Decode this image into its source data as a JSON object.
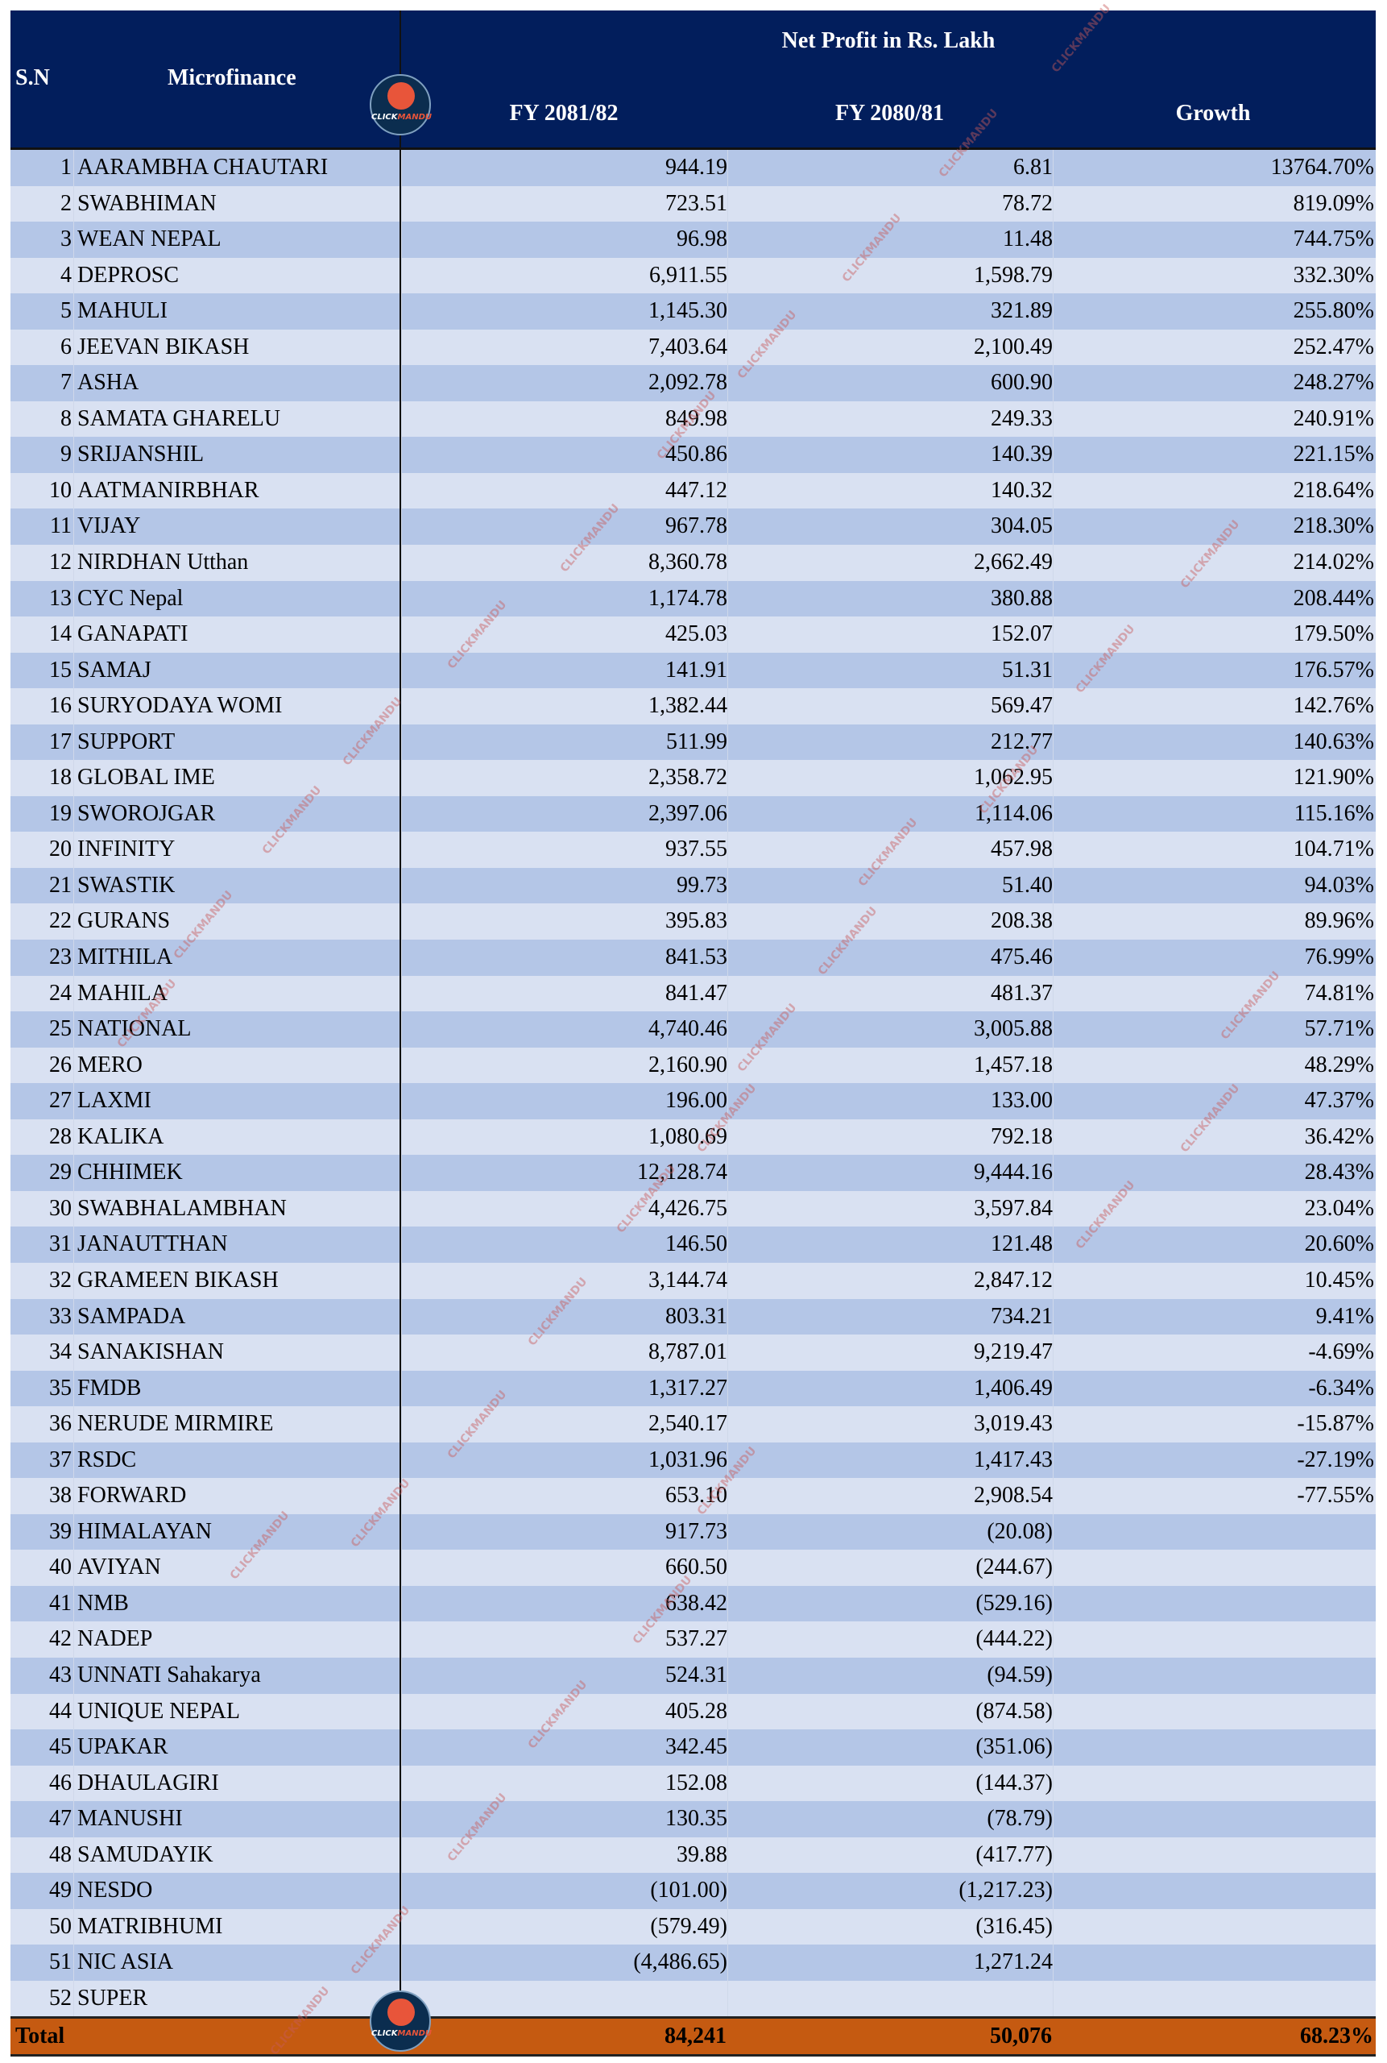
{
  "header": {
    "sn": "S.N",
    "microfinance": "Microfinance",
    "group": "Net Profit in Rs. Lakh",
    "fy_current": "FY 2081/82",
    "fy_previous": "FY 2080/81",
    "growth": "Growth"
  },
  "logo": {
    "text_a": "CLICK",
    "text_b": "MANDU"
  },
  "watermark": "CLICKMANDU",
  "colors": {
    "header_bg": "#021e5c",
    "row_odd": "#b4c6e7",
    "row_even": "#d9e1f2",
    "total_bg": "#c55a11"
  },
  "rows": [
    [
      "1",
      "AARAMBHA CHAUTARI",
      "944.19",
      "6.81",
      "13764.70%"
    ],
    [
      "2",
      "SWABHIMAN",
      "723.51",
      "78.72",
      "819.09%"
    ],
    [
      "3",
      "WEAN NEPAL",
      "96.98",
      "11.48",
      "744.75%"
    ],
    [
      "4",
      "DEPROSC",
      "6,911.55",
      "1,598.79",
      "332.30%"
    ],
    [
      "5",
      "MAHULI",
      "1,145.30",
      "321.89",
      "255.80%"
    ],
    [
      "6",
      "JEEVAN BIKASH",
      "7,403.64",
      "2,100.49",
      "252.47%"
    ],
    [
      "7",
      "ASHA",
      "2,092.78",
      "600.90",
      "248.27%"
    ],
    [
      "8",
      "SAMATA GHARELU",
      "849.98",
      "249.33",
      "240.91%"
    ],
    [
      "9",
      "SRIJANSHIL",
      "450.86",
      "140.39",
      "221.15%"
    ],
    [
      "10",
      "AATMANIRBHAR",
      "447.12",
      "140.32",
      "218.64%"
    ],
    [
      "11",
      "VIJAY",
      "967.78",
      "304.05",
      "218.30%"
    ],
    [
      "12",
      "NIRDHAN Utthan",
      "8,360.78",
      "2,662.49",
      "214.02%"
    ],
    [
      "13",
      "CYC Nepal",
      "1,174.78",
      "380.88",
      "208.44%"
    ],
    [
      "14",
      "GANAPATI",
      "425.03",
      "152.07",
      "179.50%"
    ],
    [
      "15",
      "SAMAJ",
      "141.91",
      "51.31",
      "176.57%"
    ],
    [
      "16",
      "SURYODAYA WOMI",
      "1,382.44",
      "569.47",
      "142.76%"
    ],
    [
      "17",
      "SUPPORT",
      "511.99",
      "212.77",
      "140.63%"
    ],
    [
      "18",
      "GLOBAL IME",
      "2,358.72",
      "1,062.95",
      "121.90%"
    ],
    [
      "19",
      "SWOROJGAR",
      "2,397.06",
      "1,114.06",
      "115.16%"
    ],
    [
      "20",
      "INFINITY",
      "937.55",
      "457.98",
      "104.71%"
    ],
    [
      "21",
      "SWASTIK",
      "99.73",
      "51.40",
      "94.03%"
    ],
    [
      "22",
      "GURANS",
      "395.83",
      "208.38",
      "89.96%"
    ],
    [
      "23",
      "MITHILA",
      "841.53",
      "475.46",
      "76.99%"
    ],
    [
      "24",
      "MAHILA",
      "841.47",
      "481.37",
      "74.81%"
    ],
    [
      "25",
      "NATIONAL",
      "4,740.46",
      "3,005.88",
      "57.71%"
    ],
    [
      "26",
      "MERO",
      "2,160.90",
      "1,457.18",
      "48.29%"
    ],
    [
      "27",
      "LAXMI",
      "196.00",
      "133.00",
      "47.37%"
    ],
    [
      "28",
      "KALIKA",
      "1,080.69",
      "792.18",
      "36.42%"
    ],
    [
      "29",
      "CHHIMEK",
      "12,128.74",
      "9,444.16",
      "28.43%"
    ],
    [
      "30",
      "SWABHALAMBHAN",
      "4,426.75",
      "3,597.84",
      "23.04%"
    ],
    [
      "31",
      "JANAUTTHAN",
      "146.50",
      "121.48",
      "20.60%"
    ],
    [
      "32",
      "GRAMEEN BIKASH",
      "3,144.74",
      "2,847.12",
      "10.45%"
    ],
    [
      "33",
      "SAMPADA",
      "803.31",
      "734.21",
      "9.41%"
    ],
    [
      "34",
      "SANAKISHAN",
      "8,787.01",
      "9,219.47",
      "-4.69%"
    ],
    [
      "35",
      "FMDB",
      "1,317.27",
      "1,406.49",
      "-6.34%"
    ],
    [
      "36",
      "NERUDE MIRMIRE",
      "2,540.17",
      "3,019.43",
      "-15.87%"
    ],
    [
      "37",
      "RSDC",
      "1,031.96",
      "1,417.43",
      "-27.19%"
    ],
    [
      "38",
      "FORWARD",
      "653.10",
      "2,908.54",
      "-77.55%"
    ],
    [
      "39",
      "HIMALAYAN",
      "917.73",
      "(20.08)",
      ""
    ],
    [
      "40",
      "AVIYAN",
      "660.50",
      "(244.67)",
      ""
    ],
    [
      "41",
      "NMB",
      "638.42",
      "(529.16)",
      ""
    ],
    [
      "42",
      "NADEP",
      "537.27",
      "(444.22)",
      ""
    ],
    [
      "43",
      "UNNATI Sahakarya",
      "524.31",
      "(94.59)",
      ""
    ],
    [
      "44",
      "UNIQUE NEPAL",
      "405.28",
      "(874.58)",
      ""
    ],
    [
      "45",
      "UPAKAR",
      "342.45",
      "(351.06)",
      ""
    ],
    [
      "46",
      "DHAULAGIRI",
      "152.08",
      "(144.37)",
      ""
    ],
    [
      "47",
      "MANUSHI",
      "130.35",
      "(78.79)",
      ""
    ],
    [
      "48",
      "SAMUDAYIK",
      "39.88",
      "(417.77)",
      ""
    ],
    [
      "49",
      "NESDO",
      "(101.00)",
      "(1,217.23)",
      ""
    ],
    [
      "50",
      "MATRIBHUMI",
      "(579.49)",
      "(316.45)",
      ""
    ],
    [
      "51",
      "NIC ASIA",
      "(4,486.65)",
      "1,271.24",
      ""
    ],
    [
      "52",
      "SUPER",
      "",
      "",
      ""
    ]
  ],
  "total": {
    "label": "Total",
    "fy_current": "84,241",
    "fy_previous": "50,076",
    "growth": "68.23%"
  }
}
